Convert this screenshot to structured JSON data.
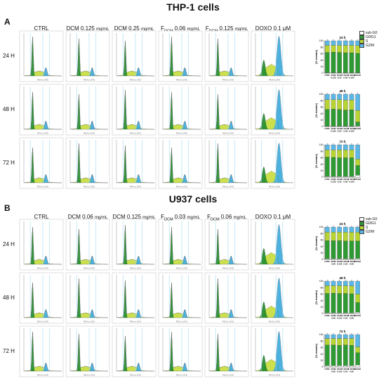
{
  "figure": {
    "panels": [
      {
        "letter": "A",
        "title": "THP-1 cells",
        "columns": [
          {
            "pre": "CTRL",
            "sub": "",
            "post": "",
            "unit": ""
          },
          {
            "pre": "DCM 0.125 ",
            "sub": "",
            "post": "",
            "unit": "mg/mL"
          },
          {
            "pre": "DCM 0.25 ",
            "sub": "",
            "post": "",
            "unit": "mg/mL"
          },
          {
            "pre": "F",
            "sub": "DCM",
            "post": " 0.06 ",
            "unit": "mg/mL"
          },
          {
            "pre": "F",
            "sub": "DCM",
            "post": " 0.125 ",
            "unit": "mg/mL"
          },
          {
            "pre": "DOXO 0.1 μM",
            "sub": "",
            "post": "",
            "unit": ""
          }
        ],
        "rows": [
          "24 H",
          "48 H",
          "72 H"
        ]
      },
      {
        "letter": "B",
        "title": "U937 cells",
        "columns": [
          {
            "pre": "CTRL",
            "sub": "",
            "post": "",
            "unit": ""
          },
          {
            "pre": "DCM 0.06 ",
            "sub": "",
            "post": "",
            "unit": "mg/mL"
          },
          {
            "pre": "DCM 0.125 ",
            "sub": "",
            "post": "",
            "unit": "mg/mL"
          },
          {
            "pre": "F",
            "sub": "DCM",
            "post": " 0.03 ",
            "unit": "mg/mL"
          },
          {
            "pre": "F",
            "sub": "DCM",
            "post": " 0.06 ",
            "unit": "mg/mL"
          },
          {
            "pre": "DOXO 0.1 μM",
            "sub": "",
            "post": "",
            "unit": ""
          }
        ],
        "rows": [
          "24 H",
          "48 H",
          "72 H"
        ]
      }
    ],
    "legend": [
      "sub-G0",
      "G0/G1",
      "S",
      "G2/M"
    ],
    "bar_ylabel": "(% events)",
    "bar_yticks": [
      "0",
      "20",
      "40",
      "60",
      "80",
      "100"
    ],
    "histogram_xlabel": "PE-A (x 10^3)",
    "colors": {
      "sub_g0": "#ffffff",
      "g0g1": "#2e9a33",
      "s": "#b8d432",
      "g2m": "#5bb7e6",
      "hist_g1": "#1f8a2a",
      "hist_s": "#c6dc3a",
      "hist_g2": "#3aa9dd",
      "gate_line": "#9fd8f2",
      "outline": "#6a6a6a"
    }
  },
  "chart_data": [
    {
      "type": "bar",
      "title": "24 h",
      "ylabel": "(% events)",
      "ylim": [
        0,
        100
      ],
      "categories": [
        "CTRL",
        "DCM 0.125",
        "DCM 0.25",
        "F DCM 0.06",
        "F DCM 0.125",
        "DOXO"
      ],
      "series": [
        {
          "name": "sub-G0",
          "values": [
            1,
            1,
            1,
            1,
            1,
            1
          ]
        },
        {
          "name": "G0/G1",
          "values": [
            63,
            64,
            63,
            62,
            62,
            60
          ]
        },
        {
          "name": "S",
          "values": [
            22,
            21,
            22,
            23,
            23,
            24
          ]
        },
        {
          "name": "G2/M",
          "values": [
            14,
            14,
            14,
            14,
            14,
            15
          ]
        }
      ]
    },
    {
      "type": "bar",
      "title": "48 h",
      "ylabel": "(% events)",
      "ylim": [
        0,
        100
      ],
      "categories": [
        "CTRL",
        "DCM 0.125",
        "DCM 0.25",
        "F DCM 0.06",
        "F DCM 0.125",
        "DOXO"
      ],
      "series": [
        {
          "name": "sub-G0",
          "values": [
            1,
            1,
            1,
            1,
            1,
            2
          ]
        },
        {
          "name": "G0/G1",
          "values": [
            52,
            53,
            52,
            50,
            51,
            12
          ]
        },
        {
          "name": "S",
          "values": [
            30,
            29,
            30,
            31,
            30,
            36
          ]
        },
        {
          "name": "G2/M",
          "values": [
            17,
            17,
            17,
            18,
            18,
            50
          ]
        }
      ]
    },
    {
      "type": "bar",
      "title": "72 h",
      "ylabel": "(% events)",
      "ylim": [
        0,
        100
      ],
      "categories": [
        "CTRL",
        "DCM 0.125",
        "DCM 0.25",
        "F DCM 0.06",
        "F DCM 0.125",
        "DOXO"
      ],
      "series": [
        {
          "name": "sub-G0",
          "values": [
            2,
            2,
            2,
            2,
            2,
            6
          ]
        },
        {
          "name": "G0/G1",
          "values": [
            60,
            59,
            58,
            58,
            58,
            30
          ]
        },
        {
          "name": "S",
          "values": [
            22,
            23,
            24,
            24,
            24,
            20
          ]
        },
        {
          "name": "G2/M",
          "values": [
            16,
            16,
            16,
            16,
            16,
            44
          ]
        }
      ]
    },
    {
      "type": "bar",
      "title": "24 h",
      "ylabel": "(% events)",
      "ylim": [
        0,
        100
      ],
      "categories": [
        "CTRL",
        "DCM 0.06",
        "DCM 0.125",
        "F DCM 0.03",
        "F DCM 0.06",
        "DOXO"
      ],
      "series": [
        {
          "name": "sub-G0",
          "values": [
            2,
            2,
            2,
            2,
            2,
            3
          ]
        },
        {
          "name": "G0/G1",
          "values": [
            56,
            56,
            56,
            55,
            55,
            54
          ]
        },
        {
          "name": "S",
          "values": [
            26,
            26,
            26,
            27,
            27,
            27
          ]
        },
        {
          "name": "G2/M",
          "values": [
            16,
            16,
            16,
            16,
            16,
            16
          ]
        }
      ]
    },
    {
      "type": "bar",
      "title": "48 h",
      "ylabel": "(% events)",
      "ylim": [
        0,
        100
      ],
      "categories": [
        "CTRL",
        "DCM 0.06",
        "DCM 0.125",
        "F DCM 0.03",
        "F DCM 0.06",
        "DOXO"
      ],
      "series": [
        {
          "name": "sub-G0",
          "values": [
            2,
            2,
            2,
            2,
            2,
            4
          ]
        },
        {
          "name": "G0/G1",
          "values": [
            60,
            61,
            60,
            60,
            59,
            30
          ]
        },
        {
          "name": "S",
          "values": [
            24,
            23,
            24,
            24,
            24,
            26
          ]
        },
        {
          "name": "G2/M",
          "values": [
            14,
            14,
            14,
            14,
            15,
            40
          ]
        }
      ]
    },
    {
      "type": "bar",
      "title": "72 h",
      "ylabel": "(% events)",
      "ylim": [
        0,
        100
      ],
      "categories": [
        "CTRL",
        "DCM 0.06",
        "DCM 0.125",
        "F DCM 0.03",
        "F DCM 0.06",
        "DOXO"
      ],
      "series": [
        {
          "name": "sub-G0",
          "values": [
            4,
            4,
            4,
            4,
            4,
            6
          ]
        },
        {
          "name": "G0/G1",
          "values": [
            64,
            64,
            63,
            64,
            63,
            38
          ]
        },
        {
          "name": "S",
          "values": [
            20,
            20,
            21,
            20,
            21,
            18
          ]
        },
        {
          "name": "G2/M",
          "values": [
            12,
            12,
            12,
            12,
            12,
            38
          ]
        }
      ]
    }
  ]
}
